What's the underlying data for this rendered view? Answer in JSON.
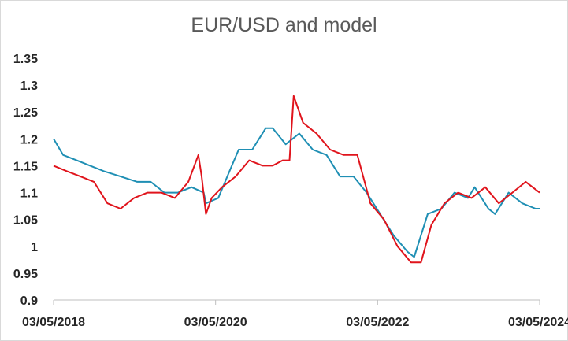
{
  "chart_data": {
    "type": "line",
    "title": "EUR/USD and model",
    "xlabel": "",
    "ylabel": "",
    "x_ticks": [
      "03/05/2018",
      "03/05/2020",
      "03/05/2022",
      "03/05/2024"
    ],
    "y_ticks": [
      "0.9",
      "0.95",
      "1",
      "1.05",
      "1.1",
      "1.15",
      "1.2",
      "1.25",
      "1.3",
      "1.35"
    ],
    "ylim": [
      0.9,
      1.35
    ],
    "xlim": [
      "2018-05-03",
      "2024-05-03"
    ],
    "grid": false,
    "legend": "none",
    "series": [
      {
        "color": "#1f8fb4",
        "x": [
          "2018-05-03",
          "2018-06-15",
          "2018-08-15",
          "2018-10-15",
          "2018-12-15",
          "2019-03-01",
          "2019-05-15",
          "2019-07-15",
          "2019-09-15",
          "2019-11-15",
          "2020-01-15",
          "2020-03-10",
          "2020-03-20",
          "2020-05-15",
          "2020-07-15",
          "2020-08-15",
          "2020-10-15",
          "2020-12-15",
          "2021-01-15",
          "2021-03-15",
          "2021-05-15",
          "2021-07-15",
          "2021-09-15",
          "2021-11-15",
          "2022-01-15",
          "2022-03-15",
          "2022-05-15",
          "2022-07-15",
          "2022-09-15",
          "2022-10-15",
          "2022-12-15",
          "2023-02-15",
          "2023-04-15",
          "2023-06-15",
          "2023-07-15",
          "2023-09-15",
          "2023-10-15",
          "2023-12-15",
          "2024-02-15",
          "2024-04-15",
          "2024-05-03"
        ],
        "y": [
          1.2,
          1.17,
          1.16,
          1.15,
          1.14,
          1.13,
          1.12,
          1.12,
          1.1,
          1.1,
          1.11,
          1.1,
          1.08,
          1.09,
          1.15,
          1.18,
          1.18,
          1.22,
          1.22,
          1.19,
          1.21,
          1.18,
          1.17,
          1.13,
          1.13,
          1.1,
          1.06,
          1.02,
          0.99,
          0.98,
          1.06,
          1.07,
          1.1,
          1.09,
          1.11,
          1.07,
          1.06,
          1.1,
          1.08,
          1.07,
          1.07
        ]
      },
      {
        "color": "#e0141c",
        "x": [
          "2018-05-03",
          "2018-07-01",
          "2018-09-01",
          "2018-11-01",
          "2019-01-01",
          "2019-03-01",
          "2019-05-01",
          "2019-07-01",
          "2019-09-01",
          "2019-11-01",
          "2020-01-01",
          "2020-02-15",
          "2020-03-01",
          "2020-03-20",
          "2020-04-15",
          "2020-06-01",
          "2020-08-01",
          "2020-10-01",
          "2020-12-01",
          "2021-01-15",
          "2021-03-01",
          "2021-04-01",
          "2021-04-20",
          "2021-06-01",
          "2021-08-01",
          "2021-10-01",
          "2021-12-01",
          "2022-02-01",
          "2022-04-01",
          "2022-06-01",
          "2022-08-01",
          "2022-10-01",
          "2022-11-15",
          "2023-01-01",
          "2023-03-01",
          "2023-05-01",
          "2023-07-01",
          "2023-09-01",
          "2023-11-01",
          "2024-01-01",
          "2024-03-01",
          "2024-05-03"
        ],
        "y": [
          1.15,
          1.14,
          1.13,
          1.12,
          1.08,
          1.07,
          1.09,
          1.1,
          1.1,
          1.09,
          1.12,
          1.17,
          1.13,
          1.06,
          1.09,
          1.11,
          1.13,
          1.16,
          1.15,
          1.15,
          1.16,
          1.16,
          1.28,
          1.23,
          1.21,
          1.18,
          1.17,
          1.17,
          1.08,
          1.05,
          1.0,
          0.97,
          0.97,
          1.04,
          1.08,
          1.1,
          1.09,
          1.11,
          1.08,
          1.1,
          1.12,
          1.1
        ]
      }
    ]
  }
}
